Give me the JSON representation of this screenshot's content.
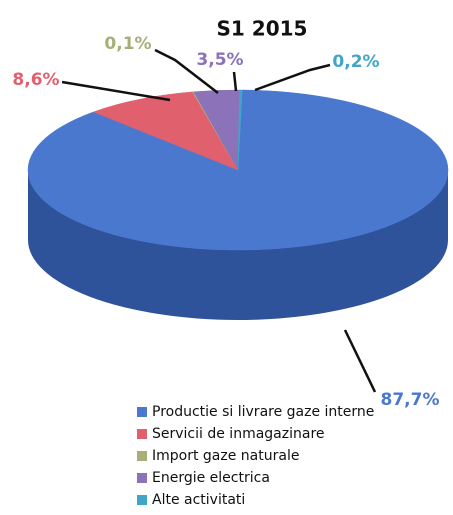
{
  "chart_data": {
    "type": "pie",
    "title": "S1 2015",
    "categories": [
      "Productie si livrare gaze interne",
      "Servicii de inmagazinare",
      "Import gaze naturale",
      "Energie electrica",
      "Alte activitati"
    ],
    "values": [
      87.7,
      8.6,
      0.1,
      3.5,
      0.2
    ],
    "value_labels": [
      "87,7%",
      "8,6%",
      "0,1%",
      "3,5%",
      "0,2%"
    ],
    "colors": [
      "#4a78cf",
      "#e0606e",
      "#a9ad78",
      "#8b72b9",
      "#3fa6c9"
    ]
  }
}
